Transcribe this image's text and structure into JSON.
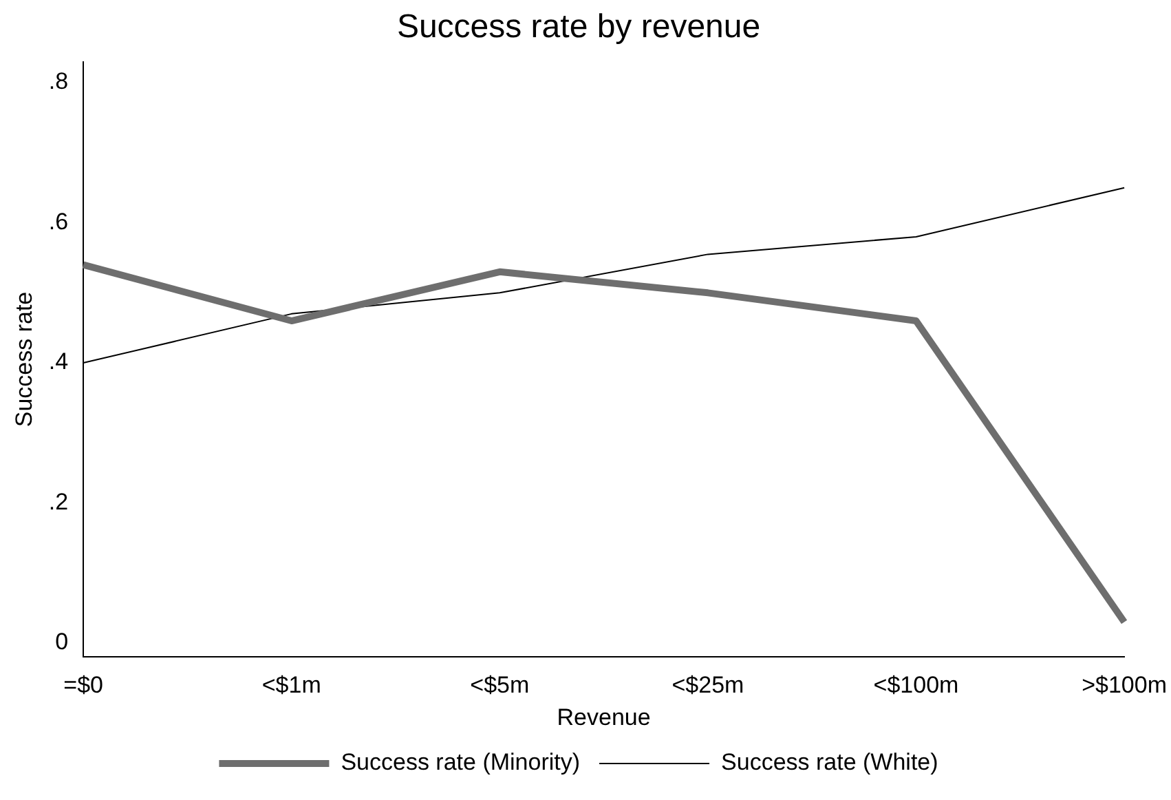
{
  "chart_data": {
    "type": "line",
    "title": "Success rate by revenue",
    "xlabel": "Revenue",
    "ylabel": "Success rate",
    "categories": [
      "=$0",
      "<$1m",
      "<$5m",
      "<$25m",
      "<$100m",
      ">$100m"
    ],
    "series": [
      {
        "name": "Success rate (Minority)",
        "color": "#6e6e6e",
        "values": [
          0.54,
          0.46,
          0.53,
          0.5,
          0.46,
          0.03
        ]
      },
      {
        "name": "Success rate (White)",
        "color": "#000000",
        "values": [
          0.4,
          0.47,
          0.5,
          0.555,
          0.58,
          0.65
        ]
      }
    ],
    "ylim": [
      -0.02,
      0.83
    ],
    "yticks": [
      {
        "value": 0,
        "label": "0"
      },
      {
        "value": 0.2,
        "label": ".2"
      },
      {
        "value": 0.4,
        "label": ".4"
      },
      {
        "value": 0.6,
        "label": ".6"
      },
      {
        "value": 0.8,
        "label": ".8"
      }
    ],
    "grid": false,
    "legend": "bottom",
    "marker": "none",
    "line_style": "solid"
  }
}
